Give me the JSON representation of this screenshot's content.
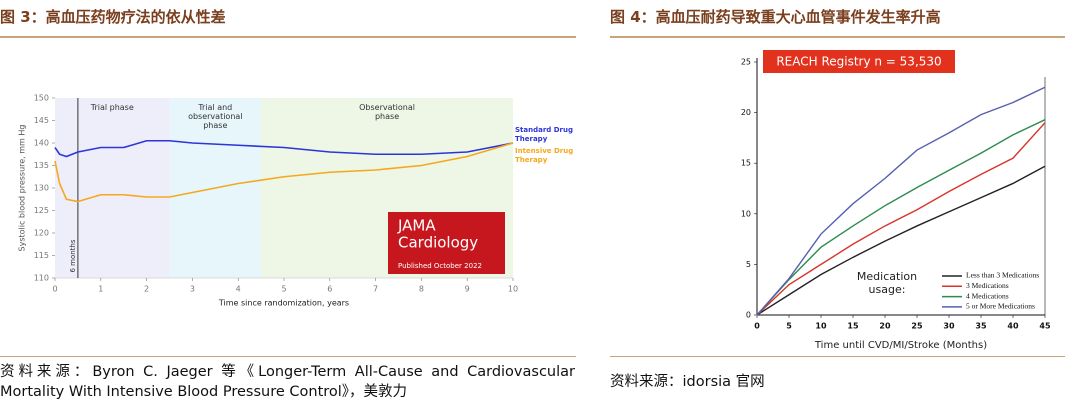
{
  "chart_data": [
    {
      "type": "line",
      "title": "图 3：高血压药物疗法的依从性差",
      "source": "资料来源：Byron C. Jaeger 等《Longer-Term All-Cause and Cardiovascular Mortality With Intensive Blood Pressure Control》，美敦力",
      "xlabel": "Time since randomization, years",
      "ylabel": "Systolic blood pressure, mm Hg",
      "xlim": [
        0,
        10
      ],
      "xticks": [
        0,
        1,
        2,
        3,
        4,
        5,
        6,
        7,
        8,
        9,
        10
      ],
      "ylim": [
        110,
        150
      ],
      "yticks": [
        110,
        115,
        120,
        125,
        130,
        135,
        140,
        145,
        150
      ],
      "x": [
        0,
        0.1,
        0.25,
        0.5,
        1,
        1.5,
        2,
        2.5,
        3,
        4,
        5,
        6,
        7,
        8,
        9,
        10
      ],
      "series": [
        {
          "name": "Standard Drug Therapy",
          "color": "#2b35d8",
          "values": [
            139,
            137.5,
            137,
            138,
            139,
            139,
            140.5,
            140.5,
            140,
            139.5,
            139,
            138,
            137.5,
            137.5,
            138,
            140
          ]
        },
        {
          "name": "Intensive Drug Therapy",
          "color": "#f6a81c",
          "values": [
            136,
            131,
            127.5,
            127,
            128.5,
            128.5,
            128,
            128,
            129,
            131,
            132.5,
            133.5,
            134,
            135,
            137,
            140
          ]
        }
      ],
      "phases": [
        {
          "label": "Trial phase",
          "start": 0,
          "end": 2.5,
          "color": "#eeeefb"
        },
        {
          "label": "Trial and observational phase",
          "start": 2.5,
          "end": 4.5,
          "color": "#e6f6fb"
        },
        {
          "label": "Observational phase",
          "start": 4.5,
          "end": 10,
          "color": "#eef6e6"
        }
      ],
      "marker": {
        "x": 0.5,
        "label": "6 months"
      },
      "badge": [
        "JAMA",
        "Cardiology",
        "Published October 2022"
      ]
    },
    {
      "type": "line",
      "title": "图 4：高血压耐药导致重大心血管事件发生率升高",
      "source": "资料来源：idorsia 官网",
      "xlabel": "Time until CVD/MI/Stroke (Months)",
      "xlim": [
        0,
        45
      ],
      "xticks": [
        0,
        5,
        10,
        15,
        20,
        25,
        30,
        35,
        40,
        45
      ],
      "ylim": [
        0,
        25
      ],
      "yticks": [
        0,
        5,
        10,
        15,
        20,
        25
      ],
      "x": [
        0,
        5,
        10,
        15,
        20,
        25,
        30,
        35,
        40,
        45
      ],
      "series": [
        {
          "name": "Less than 3 Medications",
          "color": "#222222",
          "values": [
            0,
            2,
            4,
            5.7,
            7.3,
            8.8,
            10.2,
            11.6,
            13,
            14.7
          ]
        },
        {
          "name": "3 Medications",
          "color": "#d9342b",
          "values": [
            0,
            3,
            5,
            7,
            8.8,
            10.4,
            12.2,
            13.9,
            15.5,
            19
          ]
        },
        {
          "name": "4 Medications",
          "color": "#2e8b4e",
          "values": [
            0,
            3.5,
            6.7,
            8.8,
            10.8,
            12.6,
            14.3,
            16,
            17.8,
            19.3
          ]
        },
        {
          "name": "5 or More Medications",
          "color": "#5560b0",
          "values": [
            0,
            3.6,
            8,
            11,
            13.5,
            16.3,
            18,
            19.8,
            21,
            22.5
          ]
        }
      ],
      "annotation": "REACH Registry n = 53,530",
      "legend_title": "Medication usage:"
    }
  ]
}
